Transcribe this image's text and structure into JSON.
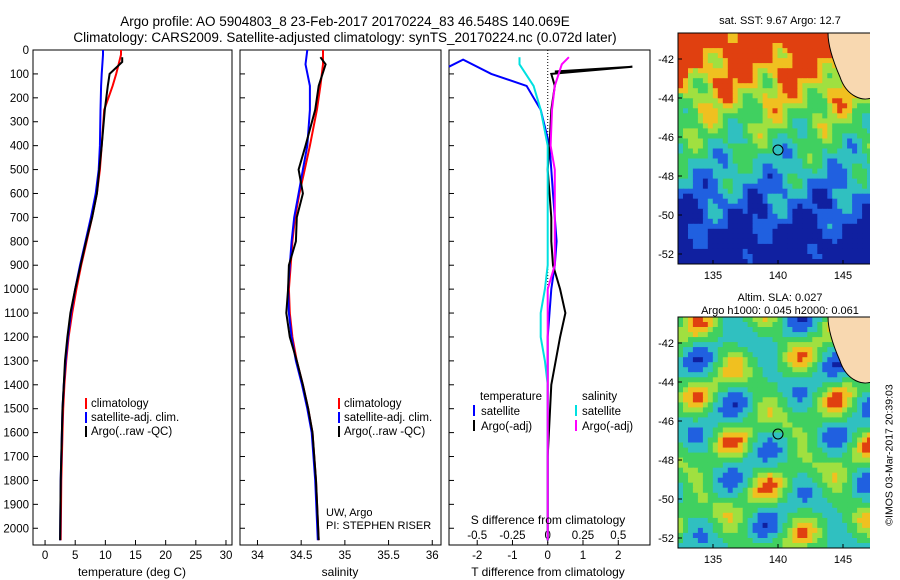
{
  "header": {
    "line1": "Argo profile: AO 5904803_8 23-Feb-2017 20170224_83 46.548S 140.069E",
    "line2": "Climatology: CARS2009. Satellite-adjusted climatology: synTS_20170224.nc (0.072d later)"
  },
  "colors": {
    "climatology": "#ff0000",
    "satellite": "#0000ff",
    "argo": "#000000",
    "sat_diff": "#00e0e0",
    "argo_s_diff": "#ff00ff"
  },
  "depth_axis": {
    "ticks": [
      0,
      100,
      200,
      300,
      400,
      500,
      600,
      700,
      800,
      900,
      1000,
      1100,
      1200,
      1300,
      1400,
      1500,
      1600,
      1700,
      1800,
      1900,
      2000
    ],
    "range": [
      0,
      2070
    ]
  },
  "panels": {
    "temperature": {
      "xlabel": "temperature (deg C)",
      "xticks": [
        0,
        5,
        10,
        15,
        20,
        25,
        30
      ],
      "legend": [
        "climatology",
        "satellite-adj. clim.",
        "Argo(..raw -QC)"
      ]
    },
    "salinity": {
      "xlabel": "salinity",
      "xticks": [
        "34",
        "34.5",
        "35",
        "35.5",
        "36"
      ],
      "legend": [
        "climatology",
        "satellite-adj. clim.",
        "Argo(..raw -QC)"
      ],
      "note1": "UW, Argo",
      "note2": "PI: STEPHEN RISER"
    },
    "difference": {
      "xlabel": "T difference from climatology",
      "toplabel": "S difference from climatology",
      "t_ticks": [
        "-2",
        "-1",
        "0",
        "1",
        "2"
      ],
      "s_ticks": [
        "-0.5",
        "-0.25",
        "0",
        "0.25",
        "0.5"
      ],
      "legend_temp_head": "temperature",
      "legend_sal_head": "salinity",
      "legend_temp": [
        "satellite",
        "Argo(-adj)"
      ],
      "legend_sal": [
        "satellite",
        "Argo(-adj)"
      ]
    }
  },
  "maps": {
    "sst": {
      "title": "sat. SST: 9.67 Argo: 12.7",
      "lat_ticks": [
        "-42",
        "-44",
        "-46",
        "-48",
        "-50",
        "-52"
      ],
      "lon_ticks": [
        "135",
        "140",
        "145"
      ]
    },
    "sla": {
      "title1": "Altim. SLA: 0.027",
      "title2": "Argo h1000: 0.045 h2000: 0.061",
      "lat_ticks": [
        "-42",
        "-44",
        "-46",
        "-48",
        "-50",
        "-52"
      ],
      "lon_ticks": [
        "135",
        "140",
        "145"
      ]
    }
  },
  "credit": "©IMOS 03-Mar-2017 20:39:03",
  "chart_data": [
    {
      "type": "line",
      "title": "",
      "xlabel": "temperature (deg C)",
      "ylabel": "",
      "xlim": [
        -2,
        31
      ],
      "ylim": [
        2070,
        0
      ],
      "series": [
        {
          "name": "climatology",
          "x": [
            12.6,
            12.6,
            11.8,
            11.2,
            9.8,
            9.4,
            9.1,
            8.6,
            7.8,
            6.9,
            6.0,
            5.2,
            4.5,
            3.9,
            3.5,
            3.2,
            3.0,
            2.9,
            2.8,
            2.7,
            2.6
          ],
          "y": [
            0,
            20,
            100,
            150,
            250,
            400,
            500,
            600,
            700,
            800,
            900,
            1000,
            1100,
            1200,
            1300,
            1400,
            1500,
            1600,
            1700,
            1800,
            2050
          ]
        },
        {
          "name": "satellite-adj. clim.",
          "x": [
            9.6,
            9.6,
            9.4,
            9.3,
            9.2,
            9.1,
            8.9,
            8.4,
            7.6,
            6.7,
            5.8,
            5.0,
            4.3,
            3.8,
            3.4,
            3.1,
            2.9,
            2.8,
            2.7,
            2.6,
            2.5
          ],
          "y": [
            0,
            20,
            100,
            150,
            250,
            400,
            500,
            600,
            700,
            800,
            900,
            1000,
            1100,
            1200,
            1300,
            1400,
            1500,
            1600,
            1700,
            1800,
            2050
          ]
        },
        {
          "name": "Argo(..raw -QC)",
          "x": [
            12.8,
            12.8,
            10.7,
            10.4,
            9.9,
            9.4,
            9.0,
            8.6,
            7.8,
            6.8,
            5.9,
            5.0,
            4.2,
            3.7,
            3.3,
            3.1,
            2.9,
            2.8,
            2.7,
            2.6,
            2.5
          ],
          "y": [
            30,
            50,
            100,
            150,
            250,
            400,
            500,
            600,
            700,
            800,
            900,
            1000,
            1100,
            1200,
            1300,
            1400,
            1500,
            1600,
            1700,
            1800,
            2050
          ]
        }
      ]
    },
    {
      "type": "line",
      "title": "",
      "xlabel": "salinity",
      "ylabel": "",
      "xlim": [
        33.8,
        36.1
      ],
      "ylim": [
        2070,
        0
      ],
      "series": [
        {
          "name": "climatology",
          "x": [
            34.75,
            34.75,
            34.72,
            34.68,
            34.6,
            34.54,
            34.48,
            34.43,
            34.4,
            34.38,
            34.36,
            34.37,
            34.4,
            34.45,
            34.52,
            34.58,
            34.63,
            34.67,
            34.7
          ],
          "y": [
            0,
            60,
            150,
            250,
            400,
            500,
            600,
            700,
            800,
            900,
            1000,
            1100,
            1200,
            1300,
            1400,
            1500,
            1600,
            1800,
            2050
          ]
        },
        {
          "name": "satellite-adj. clim.",
          "x": [
            34.57,
            34.55,
            34.6,
            34.6,
            34.57,
            34.52,
            34.47,
            34.42,
            34.39,
            34.37,
            34.35,
            34.36,
            34.39,
            34.44,
            34.51,
            34.57,
            34.62,
            34.66,
            34.69
          ],
          "y": [
            0,
            60,
            150,
            250,
            400,
            500,
            600,
            700,
            800,
            900,
            1000,
            1100,
            1200,
            1300,
            1400,
            1500,
            1600,
            1800,
            2050
          ]
        },
        {
          "name": "Argo(..raw -QC)",
          "x": [
            34.72,
            34.78,
            34.7,
            34.66,
            34.55,
            34.47,
            34.52,
            34.45,
            34.44,
            34.36,
            34.35,
            34.33,
            34.37,
            34.45,
            34.52,
            34.58,
            34.63,
            34.67,
            34.7
          ],
          "y": [
            30,
            60,
            150,
            250,
            400,
            500,
            600,
            700,
            800,
            900,
            1000,
            1100,
            1200,
            1300,
            1400,
            1500,
            1600,
            1800,
            2050
          ]
        }
      ]
    },
    {
      "type": "line",
      "title": "",
      "xlabel": "T difference from climatology",
      "ylabel": "",
      "xlim": [
        -2.8,
        2.9
      ],
      "ylim": [
        2070,
        0
      ],
      "series": [
        {
          "name": "temperature satellite",
          "x": [
            -2.8,
            -2.4,
            -1.6,
            -0.6,
            -0.2,
            0.05,
            0.1,
            0.15,
            0.2,
            0.25,
            0.2,
            0.1,
            0.05,
            0,
            0,
            0,
            0
          ],
          "y": [
            70,
            40,
            100,
            150,
            250,
            400,
            500,
            600,
            700,
            800,
            900,
            1000,
            1100,
            1200,
            1400,
            1700,
            2050
          ]
        },
        {
          "name": "temperature Argo(-adj)",
          "x": [
            0.2,
            2.4,
            0.1,
            0.2,
            0.1,
            0.05,
            0,
            0.05,
            0.1,
            0.1,
            0.15,
            0.35,
            0.5,
            0.35,
            0.1,
            0,
            0
          ],
          "y": [
            90,
            70,
            100,
            150,
            250,
            400,
            500,
            600,
            700,
            800,
            900,
            1000,
            1100,
            1200,
            1400,
            1700,
            2050
          ]
        },
        {
          "name": "salinity satellite",
          "x": [
            -0.2,
            -0.2,
            -0.1,
            -0.05,
            0,
            0,
            0,
            0,
            0,
            0,
            -0.02,
            -0.05,
            -0.05,
            -0.02,
            0,
            0,
            0
          ],
          "y": [
            30,
            60,
            150,
            250,
            400,
            500,
            600,
            700,
            800,
            900,
            1000,
            1100,
            1200,
            1300,
            1400,
            1700,
            2050
          ]
        },
        {
          "name": "salinity Argo(-adj)",
          "x": [
            0.15,
            0.1,
            0.05,
            0.03,
            0.02,
            0.05,
            0.05,
            0.05,
            0.05,
            0.05,
            0,
            0,
            0,
            0,
            0,
            0,
            0
          ],
          "y": [
            30,
            60,
            150,
            250,
            400,
            500,
            600,
            700,
            800,
            900,
            1000,
            1100,
            1200,
            1300,
            1400,
            1700,
            2050
          ]
        }
      ]
    }
  ]
}
